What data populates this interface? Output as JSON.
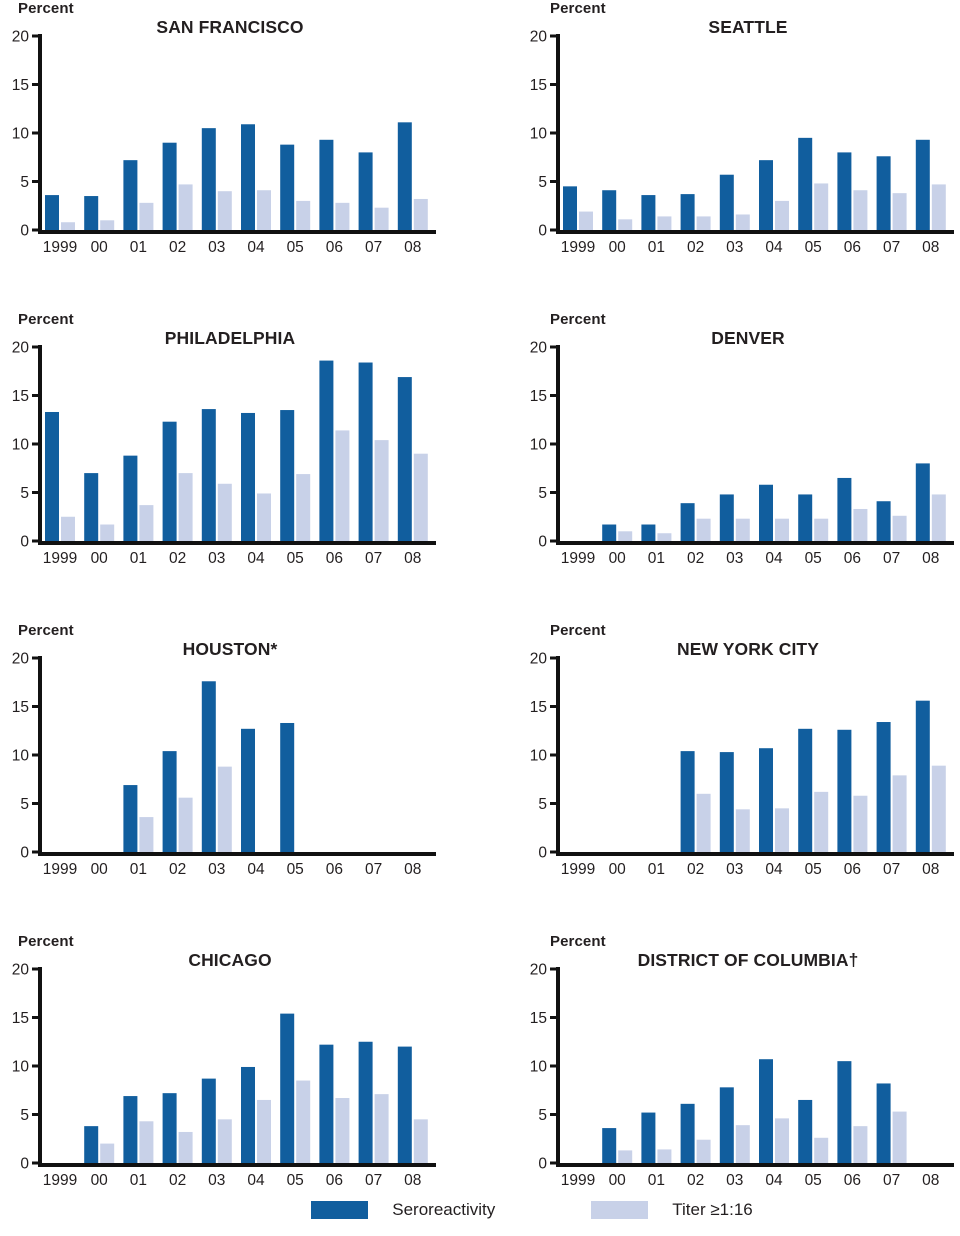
{
  "page": {
    "background": "#ffffff",
    "text_color": "#231f20"
  },
  "colors": {
    "seroreactivity": "#115e9e",
    "titer": "#c8d1e8",
    "axis": "#111111"
  },
  "legend": {
    "items": [
      {
        "label": "Seroreactivity",
        "color": "#115e9e"
      },
      {
        "label": "Titer ≥1:16",
        "color": "#c8d1e8"
      }
    ]
  },
  "chart_data": [
    {
      "type": "bar",
      "title": "SAN FRANCISCO",
      "ylabel": "Percent",
      "ylim": [
        0,
        20
      ],
      "yticks": [
        0,
        5,
        10,
        15,
        20
      ],
      "grid": false,
      "categories": [
        "1999",
        "00",
        "01",
        "02",
        "03",
        "04",
        "05",
        "06",
        "07",
        "08"
      ],
      "series": [
        {
          "name": "Seroreactivity",
          "values": [
            3.6,
            3.5,
            7.2,
            9.0,
            10.5,
            10.9,
            8.8,
            9.3,
            8.0,
            11.1
          ]
        },
        {
          "name": "Titer ≥1:16",
          "values": [
            0.8,
            1.0,
            2.8,
            4.7,
            4.0,
            4.1,
            3.0,
            2.8,
            2.3,
            3.2
          ]
        }
      ]
    },
    {
      "type": "bar",
      "title": "SEATTLE",
      "ylabel": "Percent",
      "ylim": [
        0,
        20
      ],
      "yticks": [
        0,
        5,
        10,
        15,
        20
      ],
      "grid": false,
      "categories": [
        "1999",
        "00",
        "01",
        "02",
        "03",
        "04",
        "05",
        "06",
        "07",
        "08"
      ],
      "series": [
        {
          "name": "Seroreactivity",
          "values": [
            4.5,
            4.1,
            3.6,
            3.7,
            5.7,
            7.2,
            9.5,
            8.0,
            7.6,
            9.3
          ]
        },
        {
          "name": "Titer ≥1:16",
          "values": [
            1.9,
            1.1,
            1.4,
            1.4,
            1.6,
            3.0,
            4.8,
            4.1,
            3.8,
            4.7
          ]
        }
      ]
    },
    {
      "type": "bar",
      "title": "PHILADELPHIA",
      "ylabel": "Percent",
      "ylim": [
        0,
        20
      ],
      "yticks": [
        0,
        5,
        10,
        15,
        20
      ],
      "grid": false,
      "categories": [
        "1999",
        "00",
        "01",
        "02",
        "03",
        "04",
        "05",
        "06",
        "07",
        "08"
      ],
      "series": [
        {
          "name": "Seroreactivity",
          "values": [
            13.3,
            7.0,
            8.8,
            12.3,
            13.6,
            13.2,
            13.5,
            18.6,
            18.4,
            16.9
          ]
        },
        {
          "name": "Titer ≥1:16",
          "values": [
            2.5,
            1.7,
            3.7,
            7.0,
            5.9,
            4.9,
            6.9,
            11.4,
            10.4,
            9.0
          ]
        }
      ]
    },
    {
      "type": "bar",
      "title": "DENVER",
      "ylabel": "Percent",
      "ylim": [
        0,
        20
      ],
      "yticks": [
        0,
        5,
        10,
        15,
        20
      ],
      "grid": false,
      "categories": [
        "1999",
        "00",
        "01",
        "02",
        "03",
        "04",
        "05",
        "06",
        "07",
        "08"
      ],
      "series": [
        {
          "name": "Seroreactivity",
          "values": [
            0,
            1.7,
            1.7,
            3.9,
            4.8,
            5.8,
            4.8,
            6.5,
            4.1,
            8.0
          ]
        },
        {
          "name": "Titer ≥1:16",
          "values": [
            0,
            1.0,
            0.8,
            2.3,
            2.3,
            2.3,
            2.3,
            3.3,
            2.6,
            4.8
          ]
        }
      ]
    },
    {
      "type": "bar",
      "title": "HOUSTON*",
      "ylabel": "Percent",
      "ylim": [
        0,
        20
      ],
      "yticks": [
        0,
        5,
        10,
        15,
        20
      ],
      "grid": false,
      "categories": [
        "1999",
        "00",
        "01",
        "02",
        "03",
        "04",
        "05",
        "06",
        "07",
        "08"
      ],
      "series": [
        {
          "name": "Seroreactivity",
          "values": [
            0,
            0,
            6.9,
            10.4,
            17.6,
            12.7,
            13.3,
            0,
            0,
            0
          ]
        },
        {
          "name": "Titer ≥1:16",
          "values": [
            0,
            0,
            3.6,
            5.6,
            8.8,
            0,
            0,
            0,
            0,
            0
          ]
        }
      ]
    },
    {
      "type": "bar",
      "title": "NEW YORK CITY",
      "ylabel": "Percent",
      "ylim": [
        0,
        20
      ],
      "yticks": [
        0,
        5,
        10,
        15,
        20
      ],
      "grid": false,
      "categories": [
        "1999",
        "00",
        "01",
        "02",
        "03",
        "04",
        "05",
        "06",
        "07",
        "08"
      ],
      "series": [
        {
          "name": "Seroreactivity",
          "values": [
            0,
            0,
            0,
            10.4,
            10.3,
            10.7,
            12.7,
            12.6,
            13.4,
            15.6
          ]
        },
        {
          "name": "Titer ≥1:16",
          "values": [
            0,
            0,
            0,
            6.0,
            4.4,
            4.5,
            6.2,
            5.8,
            7.9,
            8.9
          ]
        }
      ]
    },
    {
      "type": "bar",
      "title": "CHICAGO",
      "ylabel": "Percent",
      "ylim": [
        0,
        20
      ],
      "yticks": [
        0,
        5,
        10,
        15,
        20
      ],
      "grid": false,
      "categories": [
        "1999",
        "00",
        "01",
        "02",
        "03",
        "04",
        "05",
        "06",
        "07",
        "08"
      ],
      "series": [
        {
          "name": "Seroreactivity",
          "values": [
            0,
            3.8,
            6.9,
            7.2,
            8.7,
            9.9,
            15.4,
            12.2,
            12.5,
            12.0
          ]
        },
        {
          "name": "Titer ≥1:16",
          "values": [
            0,
            2.0,
            4.3,
            3.2,
            4.5,
            6.5,
            8.5,
            6.7,
            7.1,
            4.5
          ]
        }
      ]
    },
    {
      "type": "bar",
      "title": "DISTRICT OF COLUMBIA†",
      "ylabel": "Percent",
      "ylim": [
        0,
        20
      ],
      "yticks": [
        0,
        5,
        10,
        15,
        20
      ],
      "grid": false,
      "categories": [
        "1999",
        "00",
        "01",
        "02",
        "03",
        "04",
        "05",
        "06",
        "07",
        "08"
      ],
      "series": [
        {
          "name": "Seroreactivity",
          "values": [
            0,
            3.6,
            5.2,
            6.1,
            7.8,
            10.7,
            6.5,
            10.5,
            8.2,
            0
          ]
        },
        {
          "name": "Titer ≥1:16",
          "values": [
            0,
            1.3,
            1.4,
            2.4,
            3.9,
            4.6,
            2.6,
            3.8,
            5.3,
            0
          ]
        }
      ]
    }
  ]
}
